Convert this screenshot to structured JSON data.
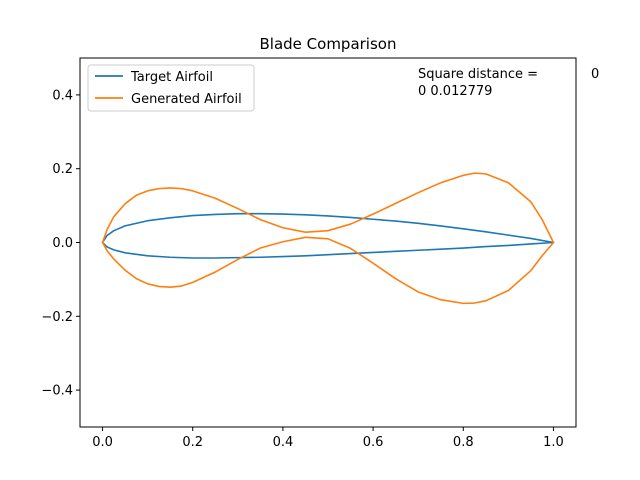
{
  "chart_data": {
    "type": "line",
    "title": "Blade Comparison",
    "xlabel": "",
    "ylabel": "",
    "xlim": [
      -0.05,
      1.05
    ],
    "ylim": [
      -0.5,
      0.5
    ],
    "x_ticks": [
      0.0,
      0.2,
      0.4,
      0.6,
      0.8,
      1.0
    ],
    "x_tick_labels": [
      "0.0",
      "0.2",
      "0.4",
      "0.6",
      "0.8",
      "1.0"
    ],
    "y_ticks": [
      -0.4,
      -0.2,
      0.0,
      0.2,
      0.4
    ],
    "y_tick_labels": [
      "−0.4",
      "−0.2",
      "0.0",
      "0.2",
      "0.4"
    ],
    "grid": false,
    "legend_position": "top-left",
    "annotation": {
      "line1": "Square distance =",
      "line1_right": "0",
      "line2": "0  0.012779"
    },
    "series": [
      {
        "name": "Target Airfoil",
        "color": "#1f77b4",
        "upper": {
          "x": [
            0.0,
            0.01,
            0.025,
            0.05,
            0.1,
            0.15,
            0.2,
            0.25,
            0.3,
            0.35,
            0.4,
            0.45,
            0.5,
            0.55,
            0.6,
            0.65,
            0.7,
            0.75,
            0.8,
            0.85,
            0.9,
            0.95,
            1.0
          ],
          "y": [
            0.0,
            0.019,
            0.032,
            0.045,
            0.059,
            0.067,
            0.073,
            0.076,
            0.078,
            0.078,
            0.077,
            0.075,
            0.072,
            0.068,
            0.063,
            0.058,
            0.052,
            0.045,
            0.037,
            0.029,
            0.02,
            0.011,
            0.0
          ]
        },
        "lower": {
          "x": [
            0.0,
            0.01,
            0.025,
            0.05,
            0.1,
            0.15,
            0.2,
            0.25,
            0.3,
            0.35,
            0.4,
            0.45,
            0.5,
            0.55,
            0.6,
            0.65,
            0.7,
            0.75,
            0.8,
            0.85,
            0.9,
            0.95,
            1.0
          ],
          "y": [
            0.0,
            -0.012,
            -0.02,
            -0.028,
            -0.036,
            -0.04,
            -0.042,
            -0.042,
            -0.041,
            -0.04,
            -0.038,
            -0.036,
            -0.033,
            -0.03,
            -0.027,
            -0.024,
            -0.021,
            -0.018,
            -0.015,
            -0.011,
            -0.008,
            -0.004,
            0.0
          ]
        }
      },
      {
        "name": "Generated Airfoil",
        "color": "#ff7f0e",
        "upper": {
          "x": [
            0.0,
            0.01,
            0.025,
            0.05,
            0.075,
            0.1,
            0.125,
            0.15,
            0.175,
            0.2,
            0.25,
            0.3,
            0.35,
            0.4,
            0.45,
            0.5,
            0.55,
            0.6,
            0.65,
            0.7,
            0.75,
            0.8,
            0.825,
            0.85,
            0.9,
            0.95,
            0.975,
            1.0
          ],
          "y": [
            0.0,
            0.035,
            0.07,
            0.105,
            0.128,
            0.14,
            0.146,
            0.148,
            0.146,
            0.14,
            0.12,
            0.092,
            0.062,
            0.04,
            0.028,
            0.032,
            0.05,
            0.077,
            0.106,
            0.135,
            0.162,
            0.182,
            0.188,
            0.186,
            0.162,
            0.11,
            0.062,
            0.0
          ]
        },
        "lower": {
          "x": [
            0.0,
            0.01,
            0.025,
            0.05,
            0.075,
            0.1,
            0.125,
            0.15,
            0.175,
            0.2,
            0.25,
            0.3,
            0.35,
            0.4,
            0.45,
            0.5,
            0.55,
            0.6,
            0.65,
            0.7,
            0.75,
            0.8,
            0.825,
            0.85,
            0.9,
            0.95,
            0.975,
            1.0
          ],
          "y": [
            0.0,
            -0.022,
            -0.045,
            -0.075,
            -0.098,
            -0.112,
            -0.119,
            -0.121,
            -0.118,
            -0.108,
            -0.08,
            -0.046,
            -0.015,
            0.002,
            0.014,
            0.01,
            -0.016,
            -0.056,
            -0.098,
            -0.134,
            -0.155,
            -0.165,
            -0.164,
            -0.158,
            -0.13,
            -0.076,
            -0.036,
            0.0
          ]
        }
      }
    ]
  }
}
